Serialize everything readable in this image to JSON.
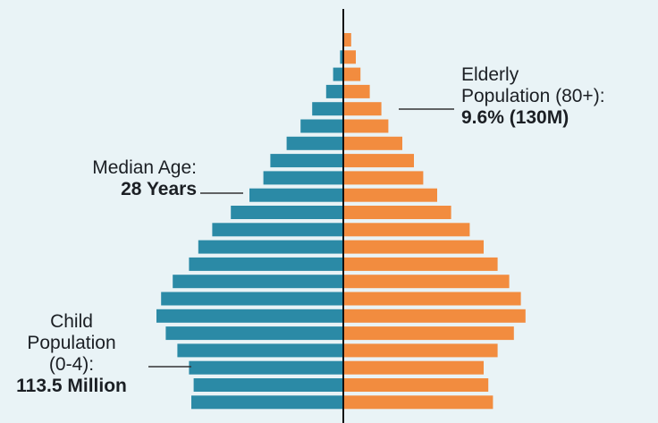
{
  "chart_data": {
    "type": "bar",
    "subtype": "population-pyramid",
    "orientation": "horizontal",
    "bar_count": 22,
    "series": [
      {
        "side": "left",
        "color": "#2b8aa6",
        "values": [
          0,
          1,
          4,
          7,
          13,
          18,
          24,
          31,
          34,
          40,
          48,
          56,
          62,
          66,
          73,
          78,
          80,
          76,
          71,
          66,
          64,
          65
        ]
      },
      {
        "side": "right",
        "color": "#f28c3f",
        "values": [
          3,
          5,
          7,
          11,
          16,
          19,
          25,
          30,
          34,
          40,
          46,
          54,
          60,
          66,
          71,
          76,
          78,
          73,
          66,
          60,
          62,
          64
        ]
      }
    ],
    "annotations": {
      "median": {
        "line1": "Median Age:",
        "line2": "28 Years"
      },
      "child": {
        "line1": "Child",
        "line2": "Population",
        "line3": "(0-4):",
        "line4": "113.5 Million"
      },
      "elderly": {
        "line1": "Elderly",
        "line2": "Population (80+):",
        "line3": "9.6% (130M)"
      }
    }
  }
}
